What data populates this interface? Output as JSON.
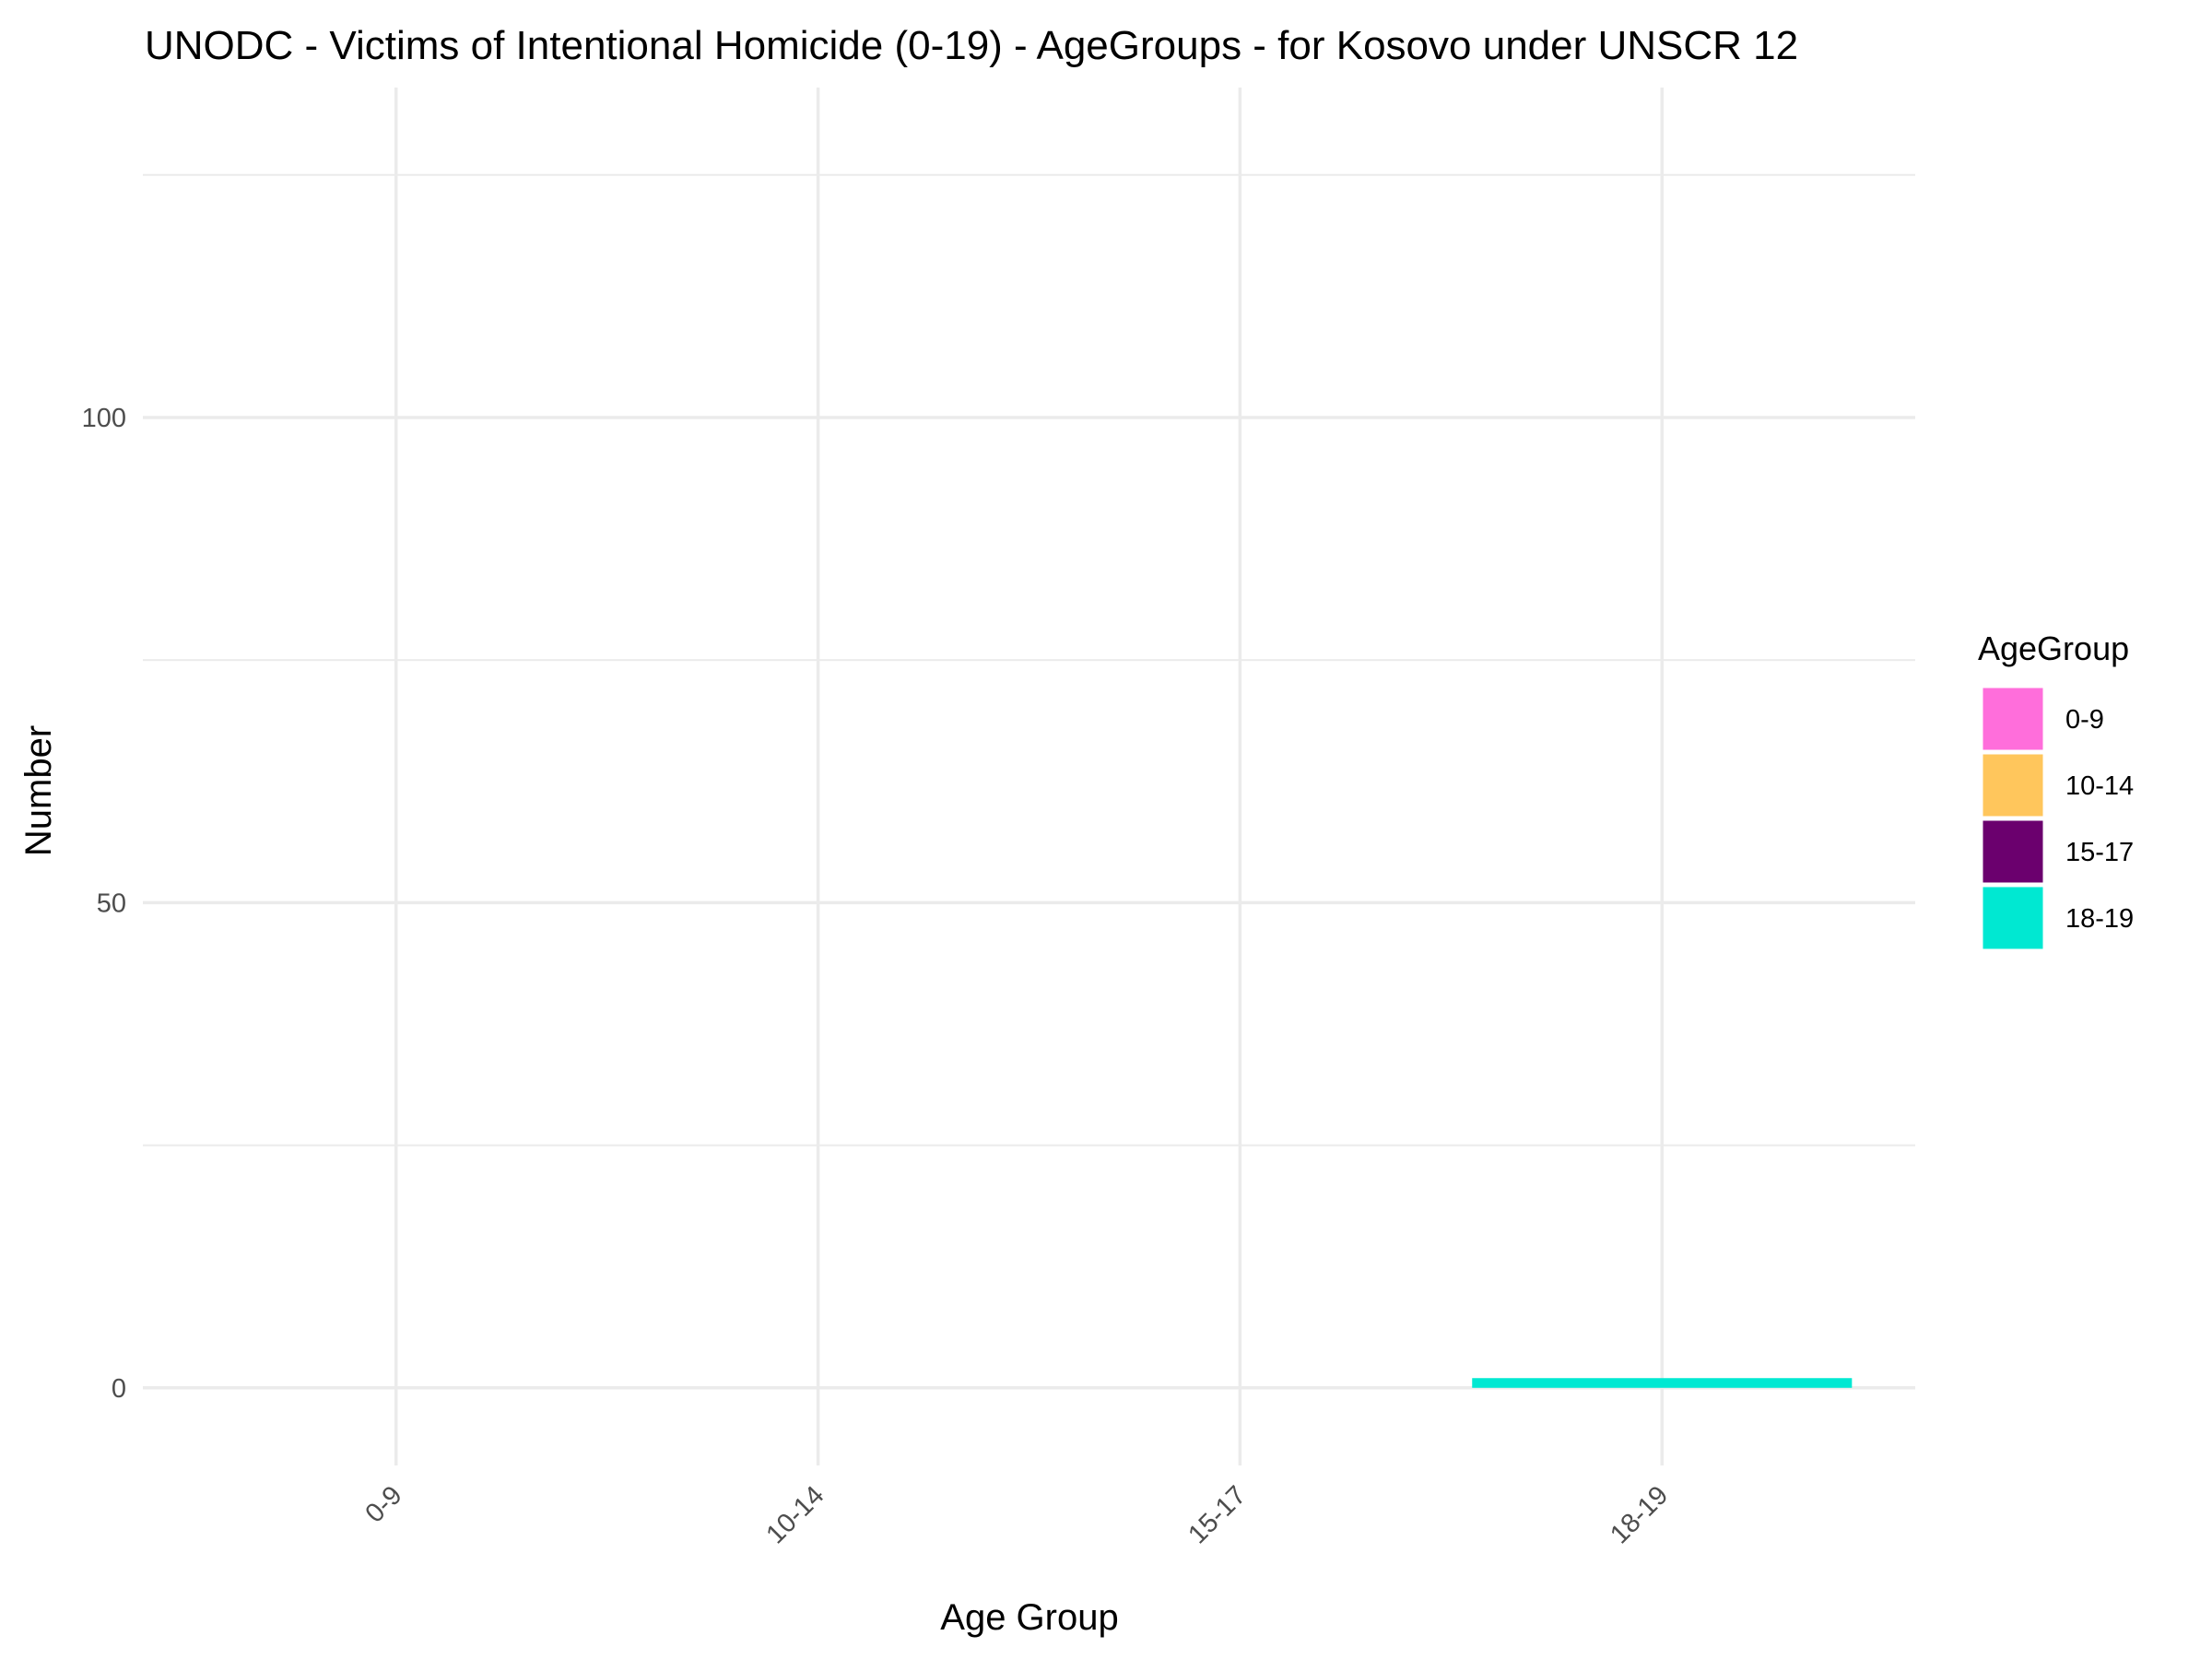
{
  "chart_data": {
    "type": "bar",
    "title": "UNODC - Victims of Intentional Homicide (0-19) - AgeGroups - for Kosovo under UNSCR 12",
    "xlabel": "Age Group",
    "ylabel": "Number",
    "categories": [
      "0-9",
      "10-14",
      "15-17",
      "18-19"
    ],
    "values": [
      0,
      0,
      0,
      1
    ],
    "colors": [
      "#FF6EDB",
      "#FFC65C",
      "#6B006E",
      "#00E8D2"
    ],
    "ylim": [
      -8,
      134
    ],
    "yticks": [
      0,
      50,
      100
    ],
    "grid": true,
    "legend": {
      "title": "AgeGroup",
      "placement": "right",
      "entries": [
        "0-9",
        "10-14",
        "15-17",
        "18-19"
      ]
    }
  }
}
